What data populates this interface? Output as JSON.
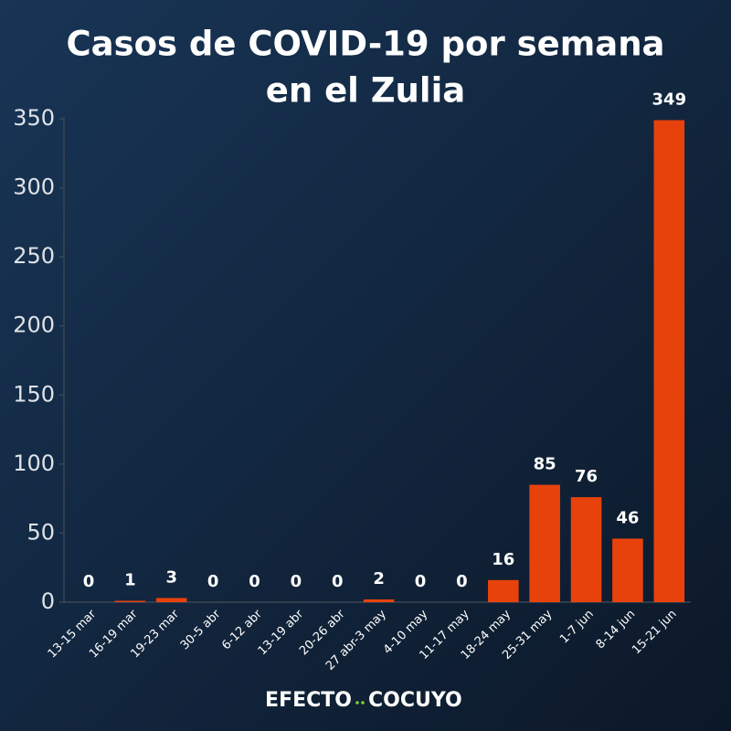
{
  "chart_data": {
    "type": "bar",
    "title": [
      "Casos de COVID-19 por semana",
      "en el Zulia"
    ],
    "categories": [
      "13-15 mar",
      "16-19 mar",
      "19-23 mar",
      "30-5 abr",
      "6-12 abr",
      "13-19 abr",
      "20-26 abr",
      "27 abr-3 may",
      "4-10 may",
      "11-17 may",
      "18-24 may",
      "25-31 may",
      "1-7 jun",
      "8-14 jun",
      "15-21 jun"
    ],
    "values": [
      0,
      1,
      3,
      0,
      0,
      0,
      0,
      2,
      0,
      0,
      16,
      85,
      76,
      46,
      349
    ],
    "color": "#e8420c",
    "ylim": [
      0,
      350
    ],
    "yticks": [
      0,
      50,
      100,
      150,
      200,
      250,
      300,
      350
    ],
    "grid": false,
    "footer": [
      "EFECTO",
      "COCUYO"
    ]
  }
}
